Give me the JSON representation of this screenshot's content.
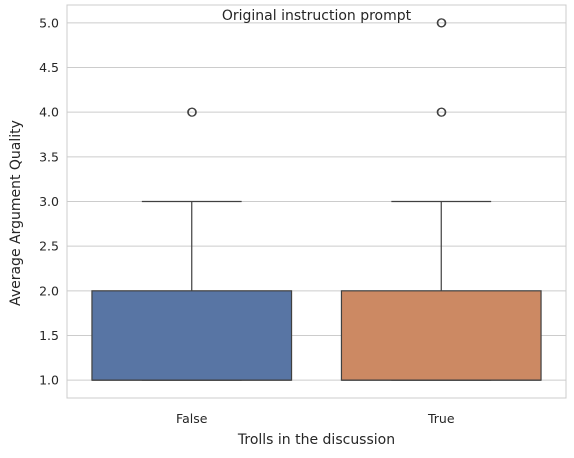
{
  "chart_data": {
    "type": "box",
    "title": "Original instruction prompt",
    "xlabel": "Trolls in the discussion",
    "ylabel": "Average Argument Quality",
    "categories": [
      "False",
      "True"
    ],
    "ylim": [
      0.8,
      5.2
    ],
    "yticks": [
      "1.0",
      "1.5",
      "2.0",
      "2.5",
      "3.0",
      "3.5",
      "4.0",
      "4.5",
      "5.0"
    ],
    "grid": "horizontal",
    "boxes": [
      {
        "category": "False",
        "color": "#5875a4",
        "whisker_low": 1.0,
        "q1": 1.0,
        "median": 1.0,
        "q3": 2.0,
        "whisker_high": 3.0,
        "outliers": [
          4.0
        ]
      },
      {
        "category": "True",
        "color": "#cc8963",
        "whisker_low": 1.0,
        "q1": 1.0,
        "median": 1.0,
        "q3": 2.0,
        "whisker_high": 3.0,
        "outliers": [
          4.0,
          5.0
        ]
      }
    ]
  }
}
